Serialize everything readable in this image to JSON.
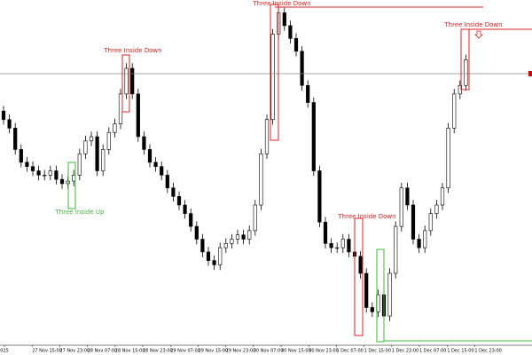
{
  "chart_data": {
    "type": "candlestick",
    "time_labels": [
      "025",
      "27 Nov 15:00",
      "27 Nov 23:00",
      "28 Nov 07:00",
      "28 Nov 15:00",
      "28 Nov 23:00",
      "29 Nov 07:00",
      "29 Nov 15:00",
      "29 Nov 23:00",
      "30 Nov 07:00",
      "30 Nov 15:00",
      "30 Nov 23:00",
      "1 Dec 07:00",
      "1 Dec 15:00",
      "1 Dec 23:00",
      "1 Dec 07:00",
      "1 Dec 15:00",
      "1 Dec 23:00"
    ],
    "annotations": [
      "Three Inside Up",
      "Three Inside Down",
      "Three Inside Down",
      "Three Inside Down",
      "Three Inside Down"
    ],
    "ylim": [
      0,
      400
    ],
    "up_color": "#ffffff",
    "down_color": "#000000",
    "open": [
      270,
      260,
      250,
      225,
      210,
      205,
      200,
      195,
      195,
      200,
      190,
      185,
      188,
      195,
      220,
      235,
      240,
      200,
      225,
      245,
      255,
      290,
      320,
      290,
      240,
      225,
      210,
      205,
      195,
      180,
      170,
      160,
      150,
      135,
      120,
      105,
      95,
      90,
      110,
      115,
      120,
      125,
      120,
      130,
      160,
      220,
      260,
      360,
      385,
      370,
      355,
      340,
      300,
      280,
      200,
      140,
      115,
      110,
      110,
      120,
      105,
      100,
      80,
      40,
      35,
      55,
      30,
      80,
      135,
      180,
      160,
      120,
      110,
      130,
      150,
      160,
      180,
      250,
      290,
      300
    ],
    "high": [
      276,
      266,
      256,
      231,
      216,
      211,
      206,
      201,
      206,
      206,
      196,
      194,
      201,
      226,
      241,
      246,
      246,
      231,
      251,
      261,
      296,
      326,
      326,
      296,
      246,
      231,
      216,
      211,
      201,
      186,
      176,
      166,
      156,
      141,
      126,
      111,
      101,
      116,
      121,
      126,
      131,
      131,
      136,
      166,
      226,
      266,
      366,
      391,
      391,
      376,
      361,
      346,
      306,
      286,
      206,
      146,
      121,
      116,
      126,
      126,
      111,
      106,
      86,
      46,
      61,
      61,
      86,
      141,
      186,
      186,
      166,
      126,
      136,
      156,
      166,
      186,
      256,
      296,
      306,
      336
    ],
    "low": [
      254,
      244,
      219,
      204,
      199,
      194,
      189,
      189,
      189,
      184,
      179,
      179,
      182,
      189,
      214,
      229,
      194,
      194,
      219,
      239,
      249,
      284,
      284,
      234,
      219,
      204,
      199,
      189,
      174,
      164,
      154,
      144,
      129,
      114,
      99,
      89,
      84,
      84,
      104,
      109,
      114,
      114,
      114,
      124,
      154,
      214,
      254,
      354,
      364,
      349,
      334,
      294,
      274,
      194,
      134,
      109,
      104,
      104,
      104,
      99,
      94,
      74,
      34,
      29,
      29,
      24,
      24,
      74,
      129,
      154,
      114,
      104,
      104,
      124,
      144,
      154,
      174,
      244,
      284,
      294
    ],
    "close": [
      260,
      250,
      225,
      210,
      205,
      200,
      195,
      195,
      200,
      190,
      185,
      188,
      195,
      220,
      235,
      240,
      200,
      225,
      245,
      255,
      290,
      320,
      290,
      240,
      225,
      210,
      205,
      195,
      180,
      170,
      160,
      150,
      135,
      120,
      105,
      95,
      90,
      110,
      115,
      120,
      125,
      120,
      130,
      160,
      220,
      260,
      360,
      385,
      370,
      355,
      340,
      300,
      280,
      200,
      140,
      115,
      110,
      110,
      120,
      105,
      100,
      80,
      40,
      35,
      55,
      30,
      80,
      135,
      180,
      160,
      120,
      110,
      130,
      150,
      160,
      180,
      250,
      290,
      300,
      330
    ]
  }
}
